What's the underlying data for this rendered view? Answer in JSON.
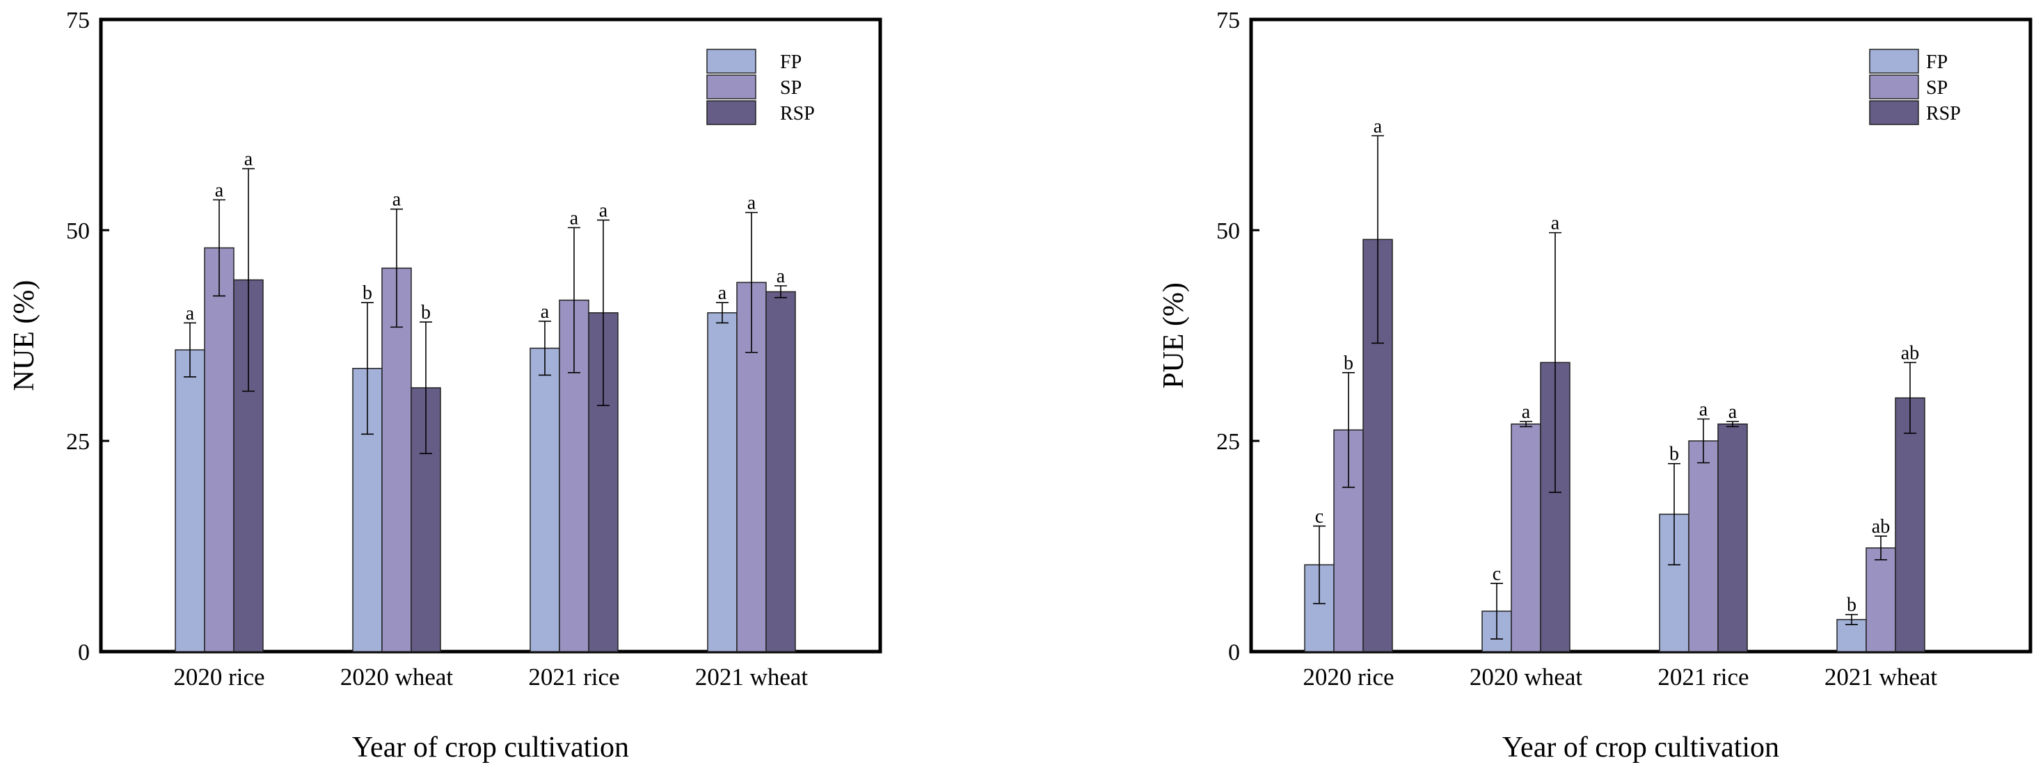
{
  "colors": {
    "FP": "#a3b1d8",
    "SP": "#9a93c1",
    "RSP": "#655d86",
    "frame": "#000000",
    "error_bar": "#000000"
  },
  "chart_data": [
    {
      "type": "bar",
      "title": "",
      "xlabel": "Year of crop cultivation",
      "ylabel": "NUE (%)",
      "ylim": [
        0,
        75
      ],
      "yticks": [
        0,
        25,
        50,
        75
      ],
      "ytick_labels": [
        "0",
        "25",
        "50",
        "75"
      ],
      "grid": false,
      "legend_position": "top-right",
      "categories": [
        "2020 rice",
        "2020 wheat",
        "2021 rice",
        "2021 wheat"
      ],
      "series": [
        {
          "name": "FP",
          "values": [
            35.8,
            33.6,
            36.0,
            40.2
          ],
          "errors": [
            3.2,
            7.8,
            3.2,
            1.2
          ],
          "labels": [
            "a",
            "b",
            "a",
            "a"
          ]
        },
        {
          "name": "SP",
          "values": [
            47.9,
            45.5,
            41.7,
            43.8
          ],
          "errors": [
            5.7,
            7.0,
            8.6,
            8.3
          ],
          "labels": [
            "a",
            "a",
            "a",
            "a"
          ]
        },
        {
          "name": "RSP",
          "values": [
            44.1,
            31.3,
            40.2,
            42.7
          ],
          "errors": [
            13.2,
            7.8,
            11.0,
            0.7
          ],
          "labels": [
            "a",
            "b",
            "a",
            "a"
          ]
        }
      ]
    },
    {
      "type": "bar",
      "title": "",
      "xlabel": "Year of crop cultivation",
      "ylabel": "PUE (%)",
      "ylim": [
        0,
        75
      ],
      "yticks": [
        0,
        25,
        50,
        75
      ],
      "ytick_labels": [
        "0",
        "25",
        "50",
        "75"
      ],
      "grid": false,
      "legend_position": "top-right",
      "categories": [
        "2020 rice",
        "2020 wheat",
        "2021 rice",
        "2021 wheat"
      ],
      "series": [
        {
          "name": "FP",
          "values": [
            10.3,
            4.8,
            16.3,
            3.8
          ],
          "errors": [
            4.6,
            3.3,
            6.0,
            0.6
          ],
          "labels": [
            "c",
            "c",
            "b",
            "b"
          ]
        },
        {
          "name": "SP",
          "values": [
            26.3,
            27.0,
            25.0,
            12.3
          ],
          "errors": [
            6.8,
            0.3,
            2.6,
            1.4
          ],
          "labels": [
            "b",
            "a",
            "a",
            "ab"
          ]
        },
        {
          "name": "RSP",
          "values": [
            48.9,
            34.3,
            27.0,
            30.1
          ],
          "errors": [
            12.3,
            15.4,
            0.3,
            4.2
          ],
          "labels": [
            "a",
            "a",
            "a",
            "ab"
          ]
        }
      ]
    }
  ]
}
